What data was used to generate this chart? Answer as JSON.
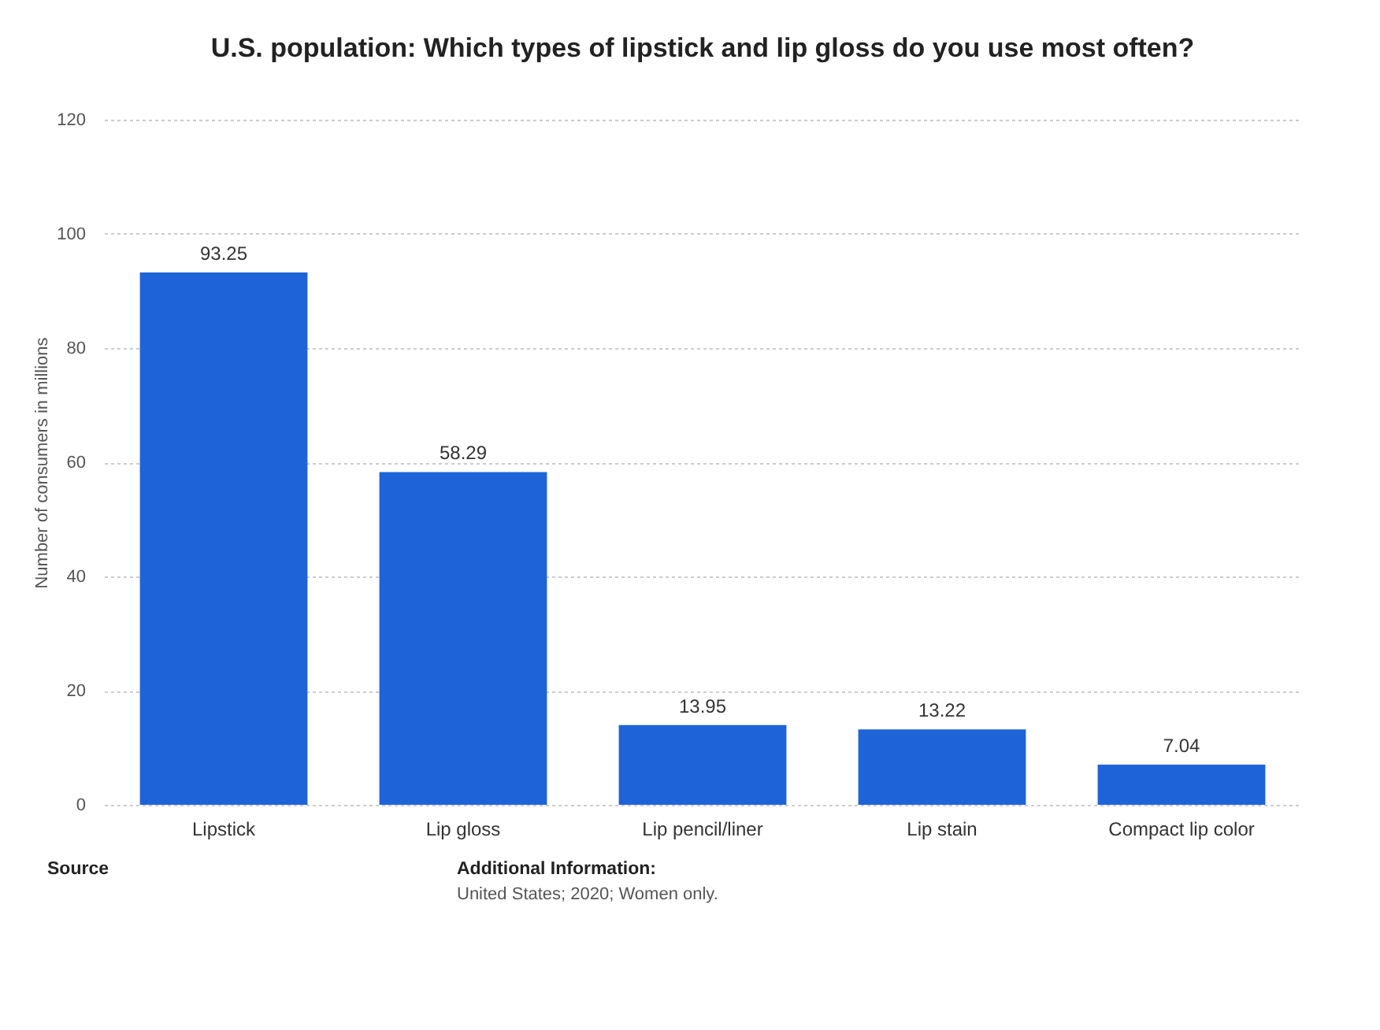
{
  "chart_data": {
    "type": "bar",
    "title": "U.S. population: Which types of lipstick and lip gloss do you use most often?",
    "ylabel": "Number of consumers in millions",
    "categories": [
      "Lipstick",
      "Lip gloss",
      "Lip pencil/liner",
      "Lip stain",
      "Compact lip color"
    ],
    "values": [
      93.25,
      58.29,
      13.95,
      13.22,
      7.04
    ],
    "color": "#1f63d9",
    "ylim": [
      0,
      120
    ],
    "yticks": [
      0,
      20,
      40,
      60,
      80,
      100,
      120
    ],
    "grid": "y",
    "data_labels": true,
    "annotations": [
      "Source",
      "Additional Information:",
      "United States; 2020; Women only."
    ]
  }
}
